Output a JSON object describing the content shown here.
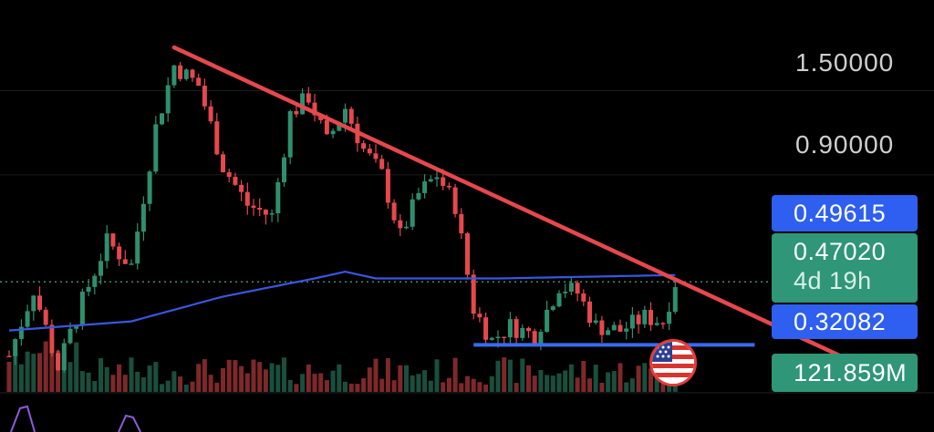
{
  "axis": {
    "labels": [
      {
        "text": "1.50000",
        "value": 1.5
      },
      {
        "text": "0.90000",
        "value": 0.9
      }
    ]
  },
  "tags": {
    "moving_average": "0.49615",
    "last_price": "0.47020",
    "countdown": "4d 19h",
    "support": "0.32082",
    "volume": "121.859M"
  },
  "badge": {
    "icon": "us-flag-icon"
  },
  "colors": {
    "up": "#2e8f6e",
    "down": "#e5484d",
    "trendline": "#e5484d",
    "moving_average": "#3a57e0",
    "support_line": "#3a6bf0",
    "tag_blue": "#2f5ff0",
    "tag_green": "#2f9677"
  },
  "chart_data": {
    "type": "candlestick",
    "y_scale": "log",
    "ylim": [
      0.21,
      2.6
    ],
    "price_labels": [
      1.5,
      0.9
    ],
    "last_price": 0.4702,
    "moving_average_last": 0.49615,
    "support_level": 0.32082,
    "last_volume": "121.859M",
    "candle_count": 110,
    "price_path": [
      [
        0,
        0.3
      ],
      [
        4,
        0.45
      ],
      [
        8,
        0.28
      ],
      [
        12,
        0.42
      ],
      [
        16,
        0.6
      ],
      [
        20,
        0.52
      ],
      [
        24,
        1.2
      ],
      [
        27,
        1.75
      ],
      [
        31,
        1.55
      ],
      [
        35,
        0.95
      ],
      [
        39,
        0.75
      ],
      [
        43,
        0.7
      ],
      [
        46,
        1.3
      ],
      [
        49,
        1.45
      ],
      [
        52,
        1.1
      ],
      [
        55,
        1.35
      ],
      [
        58,
        1.05
      ],
      [
        61,
        0.9
      ],
      [
        64,
        0.62
      ],
      [
        67,
        0.8
      ],
      [
        70,
        0.9
      ],
      [
        73,
        0.75
      ],
      [
        76,
        0.4
      ],
      [
        79,
        0.33
      ],
      [
        82,
        0.36
      ],
      [
        86,
        0.34
      ],
      [
        90,
        0.46
      ],
      [
        93,
        0.44
      ],
      [
        96,
        0.36
      ],
      [
        100,
        0.35
      ],
      [
        104,
        0.38
      ],
      [
        107,
        0.37
      ],
      [
        109,
        0.47
      ]
    ],
    "moving_average_path": [
      [
        0,
        0.35
      ],
      [
        20,
        0.37
      ],
      [
        35,
        0.43
      ],
      [
        50,
        0.48
      ],
      [
        55,
        0.5
      ],
      [
        60,
        0.48
      ],
      [
        80,
        0.48
      ],
      [
        109,
        0.49
      ]
    ],
    "trendline": {
      "from": [
        27,
        1.95
      ],
      "to": [
        138,
        0.29
      ]
    },
    "support_line": {
      "from": [
        76,
        0.32082
      ],
      "to": [
        122,
        0.32082
      ]
    }
  }
}
